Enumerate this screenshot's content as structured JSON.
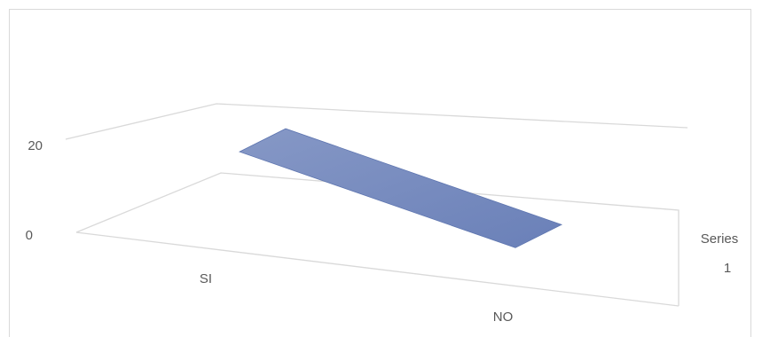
{
  "chart_data": {
    "type": "area",
    "view": "3d",
    "categories": [
      "SI",
      "NO"
    ],
    "series": [
      {
        "name": "Series 1",
        "values": [
          14,
          2
        ]
      }
    ],
    "series_label_lines": [
      "Series",
      "1"
    ],
    "y_ticks": [
      0,
      20
    ],
    "ylim": [
      0,
      20
    ],
    "grid": true,
    "colors": {
      "series": "#6f86bb",
      "grid": "#d9d9d9",
      "text": "#595959"
    }
  }
}
